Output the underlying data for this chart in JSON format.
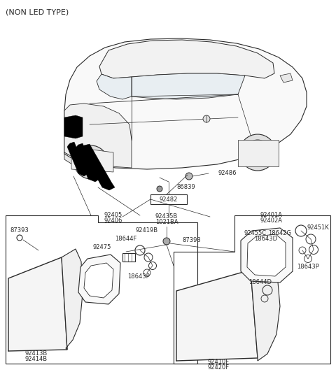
{
  "bg_color": "#ffffff",
  "line_color": "#2a2a2a",
  "text_color": "#2a2a2a",
  "title": "(NON LED TYPE)",
  "font_size_title": 8.0,
  "font_size_label": 6.0,
  "labels": {
    "car_label1": "92486",
    "car_label2": "86839",
    "car_label3": "92482",
    "mid_label1": "92435B",
    "mid_label2": "1021BA",
    "mid_label3": "87393",
    "left_box_top1": "92405",
    "left_box_top2": "92406",
    "left_box_r1": "92419B",
    "left_box_r2": "18644F",
    "left_box_r3": "92475",
    "left_box_r4": "18643P",
    "left_corner": "87393",
    "left_lamp1": "92413B",
    "left_lamp2": "92414B",
    "right_top1": "92401A",
    "right_top2": "92402A",
    "right_r1": "92451K",
    "right_r2": "92455C",
    "right_r3": "18642G",
    "right_r4": "18643D",
    "right_r5": "18644D",
    "right_r6": "18643P",
    "right_lamp1": "92410F",
    "right_lamp2": "92420F"
  }
}
